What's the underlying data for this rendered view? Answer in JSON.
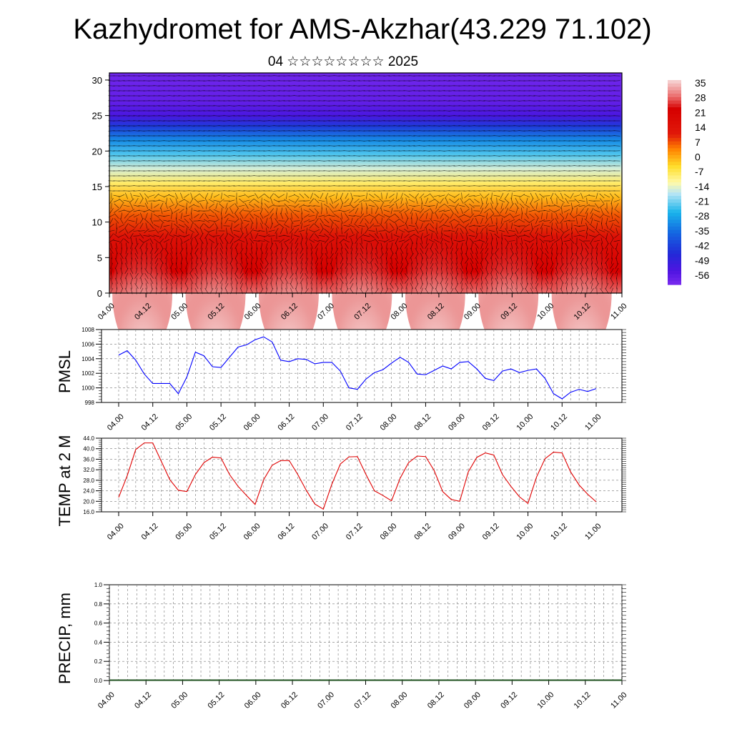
{
  "title": "Kazhydromet for AMS-Akzhar(43.229 71.102)",
  "subtitle": "04 ☆☆☆☆☆☆☆☆ 2025",
  "chart_data": [
    {
      "id": "cross_section",
      "type": "heatmap",
      "description_note": "",
      "x_ticks": [
        "04.00",
        "04.12",
        "05.00",
        "05.12",
        "06.00",
        "06.12",
        "07.00",
        "07.12",
        "08.00",
        "08.12",
        "09.00",
        "09.12",
        "10.00",
        "10.12",
        "11.00"
      ],
      "y_ticks": [
        0,
        5,
        10,
        15,
        20,
        25,
        30
      ],
      "ylim": [
        0,
        31
      ],
      "colorbar_labels": [
        35,
        28,
        21,
        14,
        7,
        0,
        -7,
        -14,
        -21,
        -28,
        -35,
        -42,
        -49,
        -56
      ],
      "colors": {
        "warmest": "#f5c9c9",
        "hot": "#d40000",
        "orange": "#ff8c00",
        "yellow": "#fff27a",
        "lightblue": "#b9e6f5",
        "cyan": "#19b3ea",
        "blue": "#1f3fe0",
        "violet": "#7a2ff0"
      }
    },
    {
      "id": "pmsl",
      "type": "line",
      "ylabel": "PMSL",
      "y_ticks": [
        998,
        1000,
        1002,
        1004,
        1006,
        1008
      ],
      "ylim": [
        998,
        1008
      ],
      "x_ticks": [
        "04.00",
        "04.12",
        "05.00",
        "05.12",
        "06.00",
        "06.12",
        "07.00",
        "07.12",
        "08.00",
        "08.12",
        "09.00",
        "09.12",
        "10.00",
        "10.12",
        "11.00"
      ],
      "color": "#0000ff",
      "values": [
        1004.5,
        1005.1,
        1003.8,
        1001.9,
        1000.6,
        1000.6,
        1000.6,
        999.2,
        1001.5,
        1004.9,
        1004.4,
        1002.9,
        1002.8,
        1004.2,
        1005.6,
        1005.9,
        1006.6,
        1007.0,
        1006.3,
        1003.8,
        1003.6,
        1004.0,
        1003.9,
        1003.3,
        1003.5,
        1003.5,
        1002.3,
        1000.0,
        999.8,
        1001.2,
        1002.1,
        1002.5,
        1003.4,
        1004.2,
        1003.5,
        1001.9,
        1001.8,
        1002.4,
        1003.0,
        1002.6,
        1003.5,
        1003.6,
        1002.6,
        1001.3,
        1001.0,
        1002.3,
        1002.6,
        1002.1,
        1002.4,
        1002.6,
        1001.3,
        999.2,
        998.5,
        999.4,
        999.8,
        999.5,
        999.9
      ]
    },
    {
      "id": "temp2m",
      "type": "line",
      "ylabel": "TEMP at 2 M",
      "y_ticks": [
        "16.0",
        "20.0",
        "24.0",
        "28.0",
        "32.0",
        "36.0",
        "40.0",
        "44.0"
      ],
      "ylim": [
        16,
        44
      ],
      "x_ticks": [
        "04.00",
        "04.12",
        "05.00",
        "05.12",
        "06.00",
        "06.12",
        "07.00",
        "07.12",
        "08.00",
        "08.12",
        "09.00",
        "09.12",
        "10.00",
        "10.12",
        "11.00"
      ],
      "color": "#e00000",
      "values": [
        21.5,
        29.7,
        39.7,
        42.2,
        42.2,
        35.2,
        28.2,
        24.2,
        23.7,
        30.2,
        34.7,
        36.8,
        36.5,
        30.2,
        25.7,
        22.2,
        18.8,
        28.2,
        33.7,
        35.5,
        35.5,
        30.2,
        24.2,
        19.0,
        17.0,
        26.5,
        34.2,
        36.9,
        37.0,
        30.2,
        24.0,
        22.2,
        20.2,
        28.7,
        34.7,
        37.2,
        37.0,
        31.7,
        23.7,
        20.7,
        20.0,
        31.2,
        36.7,
        38.4,
        37.6,
        30.2,
        25.7,
        21.7,
        19.2,
        29.2,
        36.2,
        38.7,
        38.4,
        31.2,
        26.2,
        22.7,
        19.8
      ]
    },
    {
      "id": "precip",
      "type": "bar",
      "ylabel": "PRECIP, mm",
      "y_ticks": [
        "0.0",
        "0.2",
        "0.4",
        "0.6",
        "0.8",
        "1.0"
      ],
      "ylim": [
        0,
        1
      ],
      "x_ticks": [
        "04.00",
        "04.12",
        "05.00",
        "05.12",
        "06.00",
        "06.12",
        "07.00",
        "07.12",
        "08.00",
        "08.12",
        "09.00",
        "09.12",
        "10.00",
        "10.12",
        "11.00"
      ],
      "values": [
        0,
        0,
        0,
        0,
        0,
        0,
        0,
        0,
        0,
        0,
        0,
        0,
        0,
        0,
        0,
        0,
        0,
        0,
        0,
        0,
        0,
        0,
        0,
        0,
        0,
        0,
        0,
        0,
        0,
        0,
        0,
        0,
        0,
        0,
        0,
        0,
        0,
        0,
        0,
        0,
        0,
        0,
        0,
        0,
        0,
        0,
        0,
        0,
        0,
        0,
        0,
        0,
        0,
        0,
        0,
        0,
        0
      ]
    }
  ]
}
